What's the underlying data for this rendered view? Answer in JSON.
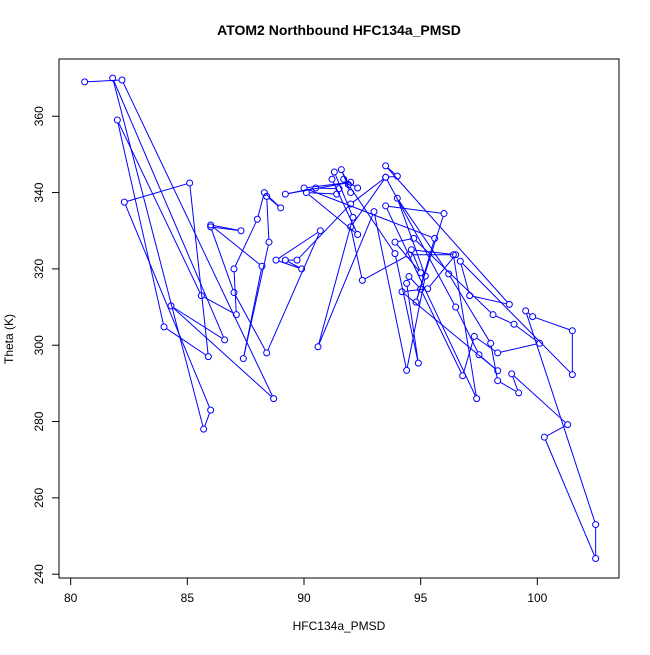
{
  "chart_data": {
    "type": "scatter",
    "title": "ATOM2 Northbound HFC134a_PMSD",
    "xlabel": "HFC134a_PMSD",
    "ylabel": "Theta (K)",
    "xlim": [
      79.5,
      103.5
    ],
    "ylim": [
      239,
      375
    ],
    "xticks": [
      80,
      85,
      90,
      95,
      100
    ],
    "yticks": [
      240,
      260,
      280,
      300,
      320,
      340,
      360
    ],
    "grid": false,
    "legend": "none",
    "connected": true,
    "colors": {
      "series": "#0000ff",
      "axis": "#000000",
      "background": "#ffffff"
    },
    "points": [
      [
        80.6,
        369.0
      ],
      [
        82.2,
        369.5
      ],
      [
        88.7,
        286.0
      ],
      [
        84.3,
        310.3
      ],
      [
        86.6,
        301.4
      ],
      [
        81.8,
        370.0
      ],
      [
        85.7,
        278.0
      ],
      [
        86.0,
        283.0
      ],
      [
        82.3,
        337.5
      ],
      [
        85.1,
        342.5
      ],
      [
        85.9,
        297.0
      ],
      [
        84.0,
        304.8
      ],
      [
        82.0,
        359.0
      ],
      [
        85.6,
        313.0
      ],
      [
        87.1,
        308.0
      ],
      [
        87.0,
        320.0
      ],
      [
        88.0,
        333.0
      ],
      [
        88.3,
        340.0
      ],
      [
        89.0,
        336.0
      ],
      [
        88.4,
        339.0
      ],
      [
        88.5,
        327.0
      ],
      [
        87.4,
        296.5
      ],
      [
        88.2,
        320.7
      ],
      [
        86.0,
        331.5
      ],
      [
        87.3,
        330.0
      ],
      [
        86.0,
        331.0
      ],
      [
        87.0,
        313.8
      ],
      [
        88.4,
        298.0
      ],
      [
        90.7,
        330.0
      ],
      [
        88.8,
        322.3
      ],
      [
        89.9,
        320.0
      ],
      [
        89.2,
        322.3
      ],
      [
        89.7,
        322.3
      ],
      [
        92.0,
        337.0
      ],
      [
        93.5,
        344.0
      ],
      [
        92.0,
        331.0
      ],
      [
        92.5,
        317.0
      ],
      [
        94.5,
        323.7
      ],
      [
        96.4,
        323.7
      ],
      [
        97.4,
        286.0
      ],
      [
        93.5,
        336.5
      ],
      [
        96.0,
        334.5
      ],
      [
        94.8,
        311.3
      ],
      [
        95.6,
        328.0
      ],
      [
        90.0,
        341.2
      ],
      [
        92.0,
        342.7
      ],
      [
        89.2,
        339.6
      ],
      [
        90.5,
        341.2
      ],
      [
        91.5,
        341.0
      ],
      [
        91.4,
        339.6
      ],
      [
        90.1,
        340.0
      ],
      [
        92.3,
        329.0
      ],
      [
        91.2,
        343.5
      ],
      [
        91.3,
        345.4
      ],
      [
        92.1,
        333.5
      ],
      [
        90.6,
        299.6
      ],
      [
        93.0,
        335.0
      ],
      [
        94.4,
        293.4
      ],
      [
        95.2,
        318.1
      ],
      [
        94.0,
        338.5
      ],
      [
        96.2,
        318.7
      ],
      [
        98.0,
        300.5
      ],
      [
        98.3,
        290.7
      ],
      [
        99.2,
        287.5
      ],
      [
        98.9,
        292.5
      ],
      [
        101.3,
        279.2
      ],
      [
        100.3,
        275.9
      ],
      [
        102.5,
        244.1
      ],
      [
        102.5,
        253.0
      ],
      [
        99.5,
        309.0
      ],
      [
        99.8,
        307.5
      ],
      [
        101.5,
        303.8
      ],
      [
        101.5,
        292.3
      ],
      [
        96.7,
        322.0
      ],
      [
        97.1,
        313.0
      ],
      [
        98.8,
        310.7
      ],
      [
        93.5,
        347.0
      ],
      [
        94.0,
        344.3
      ],
      [
        93.5,
        344.0
      ],
      [
        96.5,
        310.0
      ],
      [
        97.5,
        297.5
      ],
      [
        98.3,
        293.3
      ],
      [
        94.2,
        314.0
      ],
      [
        95.3,
        314.8
      ],
      [
        96.5,
        323.7
      ],
      [
        94.6,
        325.0
      ],
      [
        95.0,
        319.0
      ],
      [
        93.9,
        327.0
      ],
      [
        94.7,
        328.0
      ],
      [
        98.1,
        308.0
      ],
      [
        99.0,
        305.5
      ],
      [
        100.1,
        300.5
      ],
      [
        98.3,
        298.0
      ],
      [
        97.3,
        302.3
      ],
      [
        96.8,
        292.0
      ],
      [
        95.0,
        314.7
      ],
      [
        94.5,
        318.0
      ],
      [
        94.4,
        316.2
      ],
      [
        94.9,
        295.3
      ],
      [
        93.9,
        324.0
      ],
      [
        91.9,
        342.1
      ],
      [
        91.6,
        346.0
      ],
      [
        92.0,
        340.0
      ],
      [
        91.7,
        343.5
      ],
      [
        92.3,
        341.2
      ]
    ]
  }
}
